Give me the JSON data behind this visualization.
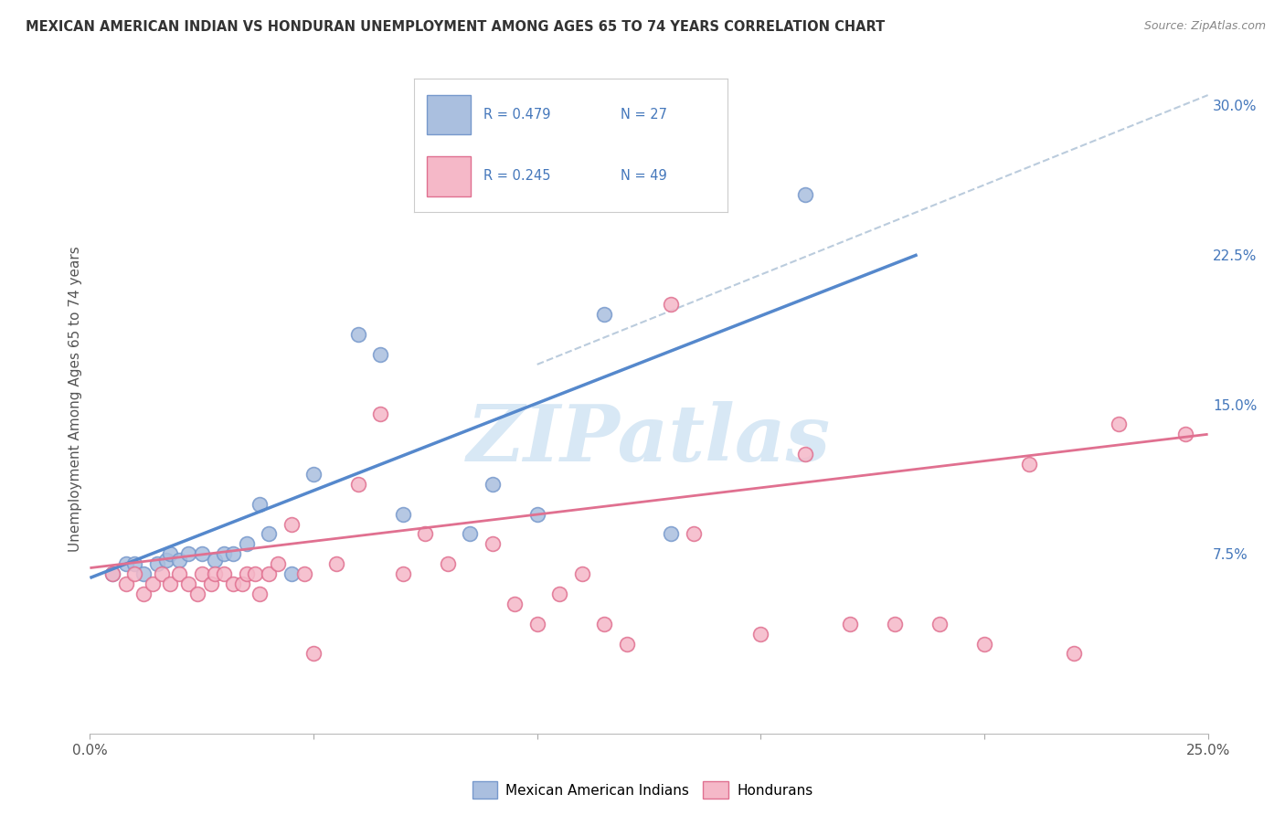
{
  "title": "MEXICAN AMERICAN INDIAN VS HONDURAN UNEMPLOYMENT AMONG AGES 65 TO 74 YEARS CORRELATION CHART",
  "source": "Source: ZipAtlas.com",
  "ylabel": "Unemployment Among Ages 65 to 74 years",
  "xlim": [
    0.0,
    0.25
  ],
  "ylim": [
    -0.015,
    0.32
  ],
  "right_yticks": [
    0.075,
    0.15,
    0.225,
    0.3
  ],
  "right_yticklabels": [
    "7.5%",
    "15.0%",
    "22.5%",
    "30.0%"
  ],
  "xticks": [
    0.0,
    0.05,
    0.1,
    0.15,
    0.2,
    0.25
  ],
  "xticklabels": [
    "0.0%",
    "",
    "",
    "",
    "",
    "25.0%"
  ],
  "legend_blue_r": "R = 0.479",
  "legend_blue_n": "N = 27",
  "legend_pink_r": "R = 0.245",
  "legend_pink_n": "N = 49",
  "blue_fill": "#AABFDF",
  "blue_edge": "#7799CC",
  "pink_fill": "#F5B8C8",
  "pink_edge": "#E07090",
  "blue_line": "#5588CC",
  "pink_line": "#E07090",
  "dash_color": "#BBCCDD",
  "text_color": "#4477BB",
  "title_color": "#333333",
  "source_color": "#888888",
  "grid_color": "#E0E0E0",
  "watermark": "ZIPatlas",
  "watermark_color": "#D8E8F5",
  "blue_x": [
    0.005,
    0.008,
    0.01,
    0.012,
    0.015,
    0.017,
    0.018,
    0.02,
    0.022,
    0.025,
    0.028,
    0.03,
    0.032,
    0.035,
    0.038,
    0.04,
    0.045,
    0.05,
    0.06,
    0.065,
    0.07,
    0.085,
    0.09,
    0.1,
    0.115,
    0.13,
    0.16
  ],
  "blue_y": [
    0.065,
    0.07,
    0.07,
    0.065,
    0.07,
    0.072,
    0.075,
    0.072,
    0.075,
    0.075,
    0.072,
    0.075,
    0.075,
    0.08,
    0.1,
    0.085,
    0.065,
    0.115,
    0.185,
    0.175,
    0.095,
    0.085,
    0.11,
    0.095,
    0.195,
    0.085,
    0.255
  ],
  "pink_x": [
    0.005,
    0.008,
    0.01,
    0.012,
    0.014,
    0.016,
    0.018,
    0.02,
    0.022,
    0.024,
    0.025,
    0.027,
    0.028,
    0.03,
    0.032,
    0.034,
    0.035,
    0.037,
    0.038,
    0.04,
    0.042,
    0.045,
    0.048,
    0.05,
    0.055,
    0.06,
    0.065,
    0.07,
    0.075,
    0.08,
    0.09,
    0.095,
    0.1,
    0.105,
    0.11,
    0.115,
    0.12,
    0.13,
    0.135,
    0.15,
    0.16,
    0.17,
    0.18,
    0.19,
    0.2,
    0.21,
    0.22,
    0.23,
    0.245
  ],
  "pink_y": [
    0.065,
    0.06,
    0.065,
    0.055,
    0.06,
    0.065,
    0.06,
    0.065,
    0.06,
    0.055,
    0.065,
    0.06,
    0.065,
    0.065,
    0.06,
    0.06,
    0.065,
    0.065,
    0.055,
    0.065,
    0.07,
    0.09,
    0.065,
    0.025,
    0.07,
    0.11,
    0.145,
    0.065,
    0.085,
    0.07,
    0.08,
    0.05,
    0.04,
    0.055,
    0.065,
    0.04,
    0.03,
    0.2,
    0.085,
    0.035,
    0.125,
    0.04,
    0.04,
    0.04,
    0.03,
    0.12,
    0.025,
    0.14,
    0.135
  ],
  "blue_line_x": [
    0.0,
    0.185
  ],
  "blue_line_y": [
    0.063,
    0.225
  ],
  "pink_line_x": [
    0.0,
    0.25
  ],
  "pink_line_y": [
    0.068,
    0.135
  ],
  "dash_line_x": [
    0.1,
    0.25
  ],
  "dash_line_y": [
    0.17,
    0.305
  ]
}
